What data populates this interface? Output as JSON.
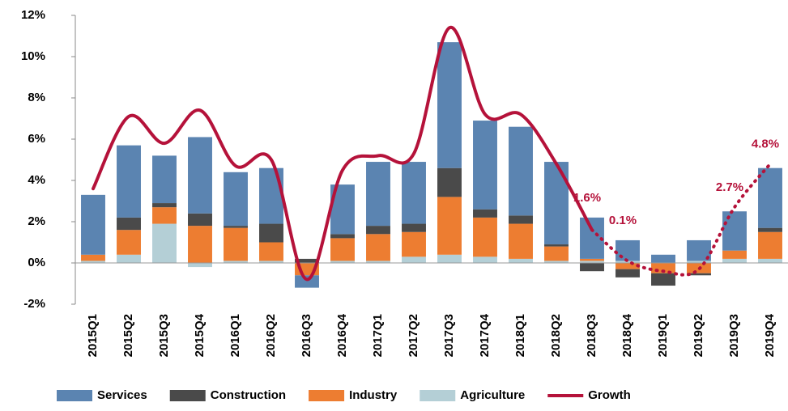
{
  "chart_data": {
    "type": "stacked_bar_line",
    "categories": [
      "2015Q1",
      "2015Q2",
      "2015Q3",
      "2015Q4",
      "2016Q1",
      "2016Q2",
      "2016Q3",
      "2016Q4",
      "2017Q1",
      "2017Q2",
      "2017Q3",
      "2017Q4",
      "2018Q1",
      "2018Q2",
      "2018Q3",
      "2018Q4",
      "2019Q1",
      "2019Q2",
      "2019Q3",
      "2019Q4"
    ],
    "series": [
      {
        "name": "Services",
        "color": "#5b84b1",
        "values": [
          2.9,
          3.5,
          2.3,
          3.7,
          2.6,
          2.7,
          -0.6,
          2.4,
          3.1,
          3.0,
          6.1,
          4.3,
          4.3,
          4.0,
          2.0,
          1.0,
          0.4,
          1.0,
          1.9,
          2.9
        ]
      },
      {
        "name": "Construction",
        "color": "#4a4a4a",
        "values": [
          0.0,
          0.6,
          0.2,
          0.6,
          0.1,
          0.9,
          0.2,
          0.2,
          0.4,
          0.4,
          1.4,
          0.4,
          0.4,
          0.1,
          -0.4,
          -0.4,
          -0.6,
          -0.1,
          0.0,
          0.2
        ]
      },
      {
        "name": "Industry",
        "color": "#ed7d31",
        "values": [
          0.3,
          1.2,
          0.8,
          1.8,
          1.6,
          0.9,
          -0.6,
          1.1,
          1.3,
          1.2,
          2.8,
          1.9,
          1.7,
          0.7,
          0.1,
          -0.3,
          -0.5,
          -0.5,
          0.4,
          1.3
        ]
      },
      {
        "name": "Agriculture",
        "color": "#b4cfd6",
        "values": [
          0.1,
          0.4,
          1.9,
          -0.2,
          0.1,
          0.1,
          0.0,
          0.1,
          0.1,
          0.3,
          0.4,
          0.3,
          0.2,
          0.1,
          0.1,
          0.1,
          0.0,
          0.1,
          0.2,
          0.2
        ]
      },
      {
        "name": "Growth",
        "color": "#b5123a",
        "kind": "line",
        "values": [
          3.6,
          7.1,
          5.8,
          7.4,
          4.7,
          5.0,
          -0.8,
          4.5,
          5.2,
          5.3,
          11.4,
          7.2,
          7.2,
          4.8,
          1.6,
          0.1,
          -0.4,
          -0.3,
          2.7,
          4.8
        ],
        "value_labels": [
          null,
          null,
          null,
          null,
          null,
          null,
          null,
          null,
          null,
          null,
          null,
          null,
          null,
          null,
          "1.6%",
          "0.1%",
          null,
          null,
          "2.7%",
          "4.8%"
        ]
      }
    ],
    "ylim": [
      -2,
      12
    ],
    "yticks": [
      {
        "value": -2,
        "label": "-2%"
      },
      {
        "value": 0,
        "label": "0%"
      },
      {
        "value": 2,
        "label": "2%"
      },
      {
        "value": 4,
        "label": "4%"
      },
      {
        "value": 6,
        "label": "6%"
      },
      {
        "value": 8,
        "label": "8%"
      },
      {
        "value": 10,
        "label": "10%"
      },
      {
        "value": 12,
        "label": "12%"
      }
    ],
    "grid": false,
    "legend": "bottom"
  }
}
